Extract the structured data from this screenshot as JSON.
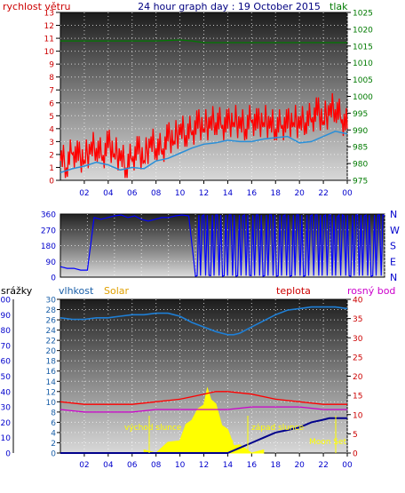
{
  "header": {
    "wind_label": "rychlost větru",
    "title": "24 hour graph day : 19 October 2015",
    "pressure_label": "tlak"
  },
  "middle": {
    "direction_labels": [
      "N",
      "W",
      "S",
      "E",
      "N"
    ]
  },
  "bottom_header": {
    "rain_label": "srážky",
    "humidity_label": "vlhkost",
    "solar_label": "Solar",
    "temp_label": "teplota",
    "dew_label": "rosný bod"
  },
  "annotations": {
    "sunrise": "východ slunce",
    "sunset": "západ slunce",
    "moonrise": "Moonrise",
    "moonset": "Moon Set"
  },
  "colors": {
    "wind": "#ff0000",
    "gust": "#2a8fd8",
    "pressure": "#007a00",
    "direction": "#0000ff",
    "humidity": "#1e7fd6",
    "solar": "#ffff00",
    "temp": "#ff0000",
    "dew": "#cc00cc",
    "rain": "#00008b",
    "title": "#000080",
    "label_red": "#cc0000",
    "label_green": "#007a00",
    "label_blue": "#0000cc",
    "label_orange": "#e0a000",
    "label_magenta": "#cc00cc",
    "label_steel": "#1a5fa8"
  },
  "chart_data": [
    {
      "type": "line",
      "id": "wind",
      "x_ticks": [
        "02",
        "04",
        "06",
        "08",
        "10",
        "12",
        "14",
        "16",
        "18",
        "20",
        "22",
        "00"
      ],
      "x_range": [
        0,
        24
      ],
      "y_left_ticks": [
        "0",
        "1",
        "2",
        "3",
        "4",
        "5",
        "6",
        "7",
        "8",
        "9",
        "10",
        "11",
        "12",
        "13"
      ],
      "y_left_range": [
        0,
        13
      ],
      "y_right_ticks": [
        "975",
        "980",
        "985",
        "990",
        "995",
        "1000",
        "1005",
        "1010",
        "1015",
        "1020",
        "1025"
      ],
      "y_right_range": [
        975,
        1025
      ],
      "series": [
        {
          "key": "wind_speed",
          "x": [
            0,
            0.5,
            1,
            1.5,
            2,
            2.5,
            3,
            3.5,
            4,
            4.5,
            5,
            5.5,
            6,
            6.5,
            7,
            7.5,
            8,
            8.5,
            9,
            9.5,
            10,
            10.5,
            11,
            11.5,
            12,
            12.5,
            13,
            13.5,
            14,
            14.5,
            15,
            15.5,
            16,
            16.5,
            17,
            17.5,
            18,
            18.5,
            19,
            19.5,
            20,
            20.5,
            21,
            21.5,
            22,
            22.5,
            23,
            23.5,
            24
          ],
          "values": [
            1.5,
            1,
            2,
            1.5,
            1.5,
            2,
            2.5,
            1.5,
            2.5,
            2,
            1.5,
            1,
            1.5,
            2,
            1.5,
            2.5,
            2.5,
            2,
            3,
            3,
            3.5,
            3.5,
            3.5,
            4,
            4,
            4,
            4.5,
            4,
            4,
            4.5,
            4,
            4,
            4.5,
            4,
            4.5,
            4,
            4,
            4,
            4,
            4.5,
            4,
            4.5,
            4.5,
            5,
            4.5,
            5,
            5.5,
            4.5,
            4
          ]
        },
        {
          "key": "wind_gust",
          "x": [
            0,
            1,
            2,
            3,
            4,
            5,
            6,
            7,
            8,
            9,
            10,
            11,
            12,
            13,
            14,
            15,
            16,
            17,
            18,
            19,
            20,
            21,
            22,
            23,
            24
          ],
          "values": [
            0.6,
            0.9,
            1.1,
            1.4,
            1.2,
            0.8,
            1,
            0.9,
            1.5,
            1.7,
            2.1,
            2.5,
            2.8,
            2.9,
            3.1,
            3,
            3,
            3.2,
            3.3,
            3.4,
            2.9,
            3,
            3.4,
            3.8,
            3.6
          ]
        },
        {
          "key": "pressure",
          "x": [
            0,
            2,
            4,
            6,
            8,
            10,
            11,
            12,
            14,
            16,
            18,
            20,
            22,
            24
          ],
          "values": [
            1016.5,
            1016.5,
            1016.5,
            1016.5,
            1016.5,
            1016.8,
            1016.5,
            1016,
            1016,
            1016,
            1016,
            1016,
            1016,
            1016
          ]
        }
      ]
    },
    {
      "type": "scatter",
      "id": "direction",
      "x_range": [
        0,
        24
      ],
      "y_ticks": [
        "360",
        "270",
        "180",
        "90",
        "0"
      ],
      "y_range": [
        0,
        360
      ],
      "series": [
        {
          "key": "wind_direction",
          "x": [
            0,
            0.5,
            1,
            1.5,
            2,
            2.5,
            3,
            3.5,
            4,
            4.5,
            5,
            5.5,
            6,
            6.5,
            7,
            7.5,
            8,
            8.5,
            9,
            9.5,
            10,
            10.5,
            11,
            11.5,
            12,
            12.5,
            13,
            13.5,
            14,
            14.5,
            15,
            15.5,
            16,
            16.5,
            17,
            17.5,
            18,
            18.5,
            19,
            19.5,
            20,
            20.5,
            21,
            21.5,
            22,
            22.5,
            23,
            23.5,
            24
          ],
          "values": [
            60,
            50,
            50,
            40,
            40,
            340,
            330,
            340,
            350,
            355,
            340,
            350,
            330,
            320,
            330,
            340,
            340,
            350,
            355,
            350,
            5,
            350,
            10,
            355,
            5,
            355,
            5,
            350,
            10,
            355,
            5,
            355,
            5,
            350,
            5,
            355,
            5,
            350,
            355,
            350,
            355,
            345,
            350,
            5,
            355,
            350,
            5,
            355,
            350
          ]
        }
      ]
    },
    {
      "type": "line",
      "id": "climate",
      "x_range": [
        0,
        24
      ],
      "y_rain_ticks": [
        "0",
        "10",
        "20",
        "30",
        "40",
        "50",
        "60",
        "70",
        "80",
        "90",
        "100"
      ],
      "y_rain_range": [
        0,
        100
      ],
      "y_temp_ticks": [
        "0",
        "2",
        "4",
        "6",
        "8",
        "10",
        "12",
        "14",
        "16",
        "18",
        "20",
        "22",
        "24",
        "26",
        "28",
        "30"
      ],
      "y_temp_range": [
        0,
        30
      ],
      "y_right_ticks": [
        "0",
        "5",
        "10",
        "15",
        "20",
        "25",
        "30",
        "35",
        "40"
      ],
      "y_right_range": [
        0,
        40
      ],
      "series": [
        {
          "key": "humidity",
          "x": [
            0,
            1,
            2,
            3,
            4,
            5,
            6,
            7,
            8,
            9,
            10,
            11,
            12,
            13,
            14,
            14.5,
            15,
            16,
            17,
            18,
            19,
            20,
            21,
            22,
            23,
            24
          ],
          "values": [
            88,
            87,
            87,
            88,
            88,
            89,
            90,
            90,
            91,
            91,
            89,
            85,
            82,
            79,
            77,
            77,
            78,
            82,
            86,
            90,
            93,
            94,
            95,
            95,
            95,
            94
          ]
        },
        {
          "key": "temperature",
          "x": [
            0,
            2,
            4,
            6,
            8,
            10,
            11,
            12,
            13,
            14,
            16,
            18,
            20,
            22,
            24
          ],
          "values": [
            10,
            9.5,
            9.5,
            9.5,
            10,
            10.5,
            11,
            11.5,
            12,
            12,
            11.5,
            10.5,
            10,
            9.5,
            9.5
          ]
        },
        {
          "key": "dew_point",
          "x": [
            0,
            2,
            4,
            6,
            8,
            10,
            12,
            14,
            16,
            18,
            20,
            22,
            24
          ],
          "values": [
            8.5,
            8,
            8,
            8,
            8.5,
            8.5,
            8.5,
            8.5,
            9,
            9,
            9,
            8.5,
            8.5
          ]
        },
        {
          "key": "rain",
          "x": [
            0,
            14,
            15,
            16,
            17,
            18,
            19,
            20,
            21,
            22,
            22.5,
            23,
            24
          ],
          "values": [
            0,
            0,
            1,
            2,
            3,
            4,
            4.5,
            5,
            6,
            6.5,
            6.8,
            6.8,
            6.8
          ]
        },
        {
          "key": "solar",
          "x": [
            7,
            8,
            9,
            10,
            10.5,
            11,
            11.5,
            12,
            12.3,
            12.6,
            13,
            13.5,
            14,
            14.5,
            15,
            16,
            17
          ],
          "values": [
            0,
            0.5,
            1.5,
            3,
            5,
            7,
            8,
            10,
            12,
            11,
            9,
            6,
            4,
            2,
            1,
            0.5,
            0
          ]
        }
      ]
    }
  ]
}
